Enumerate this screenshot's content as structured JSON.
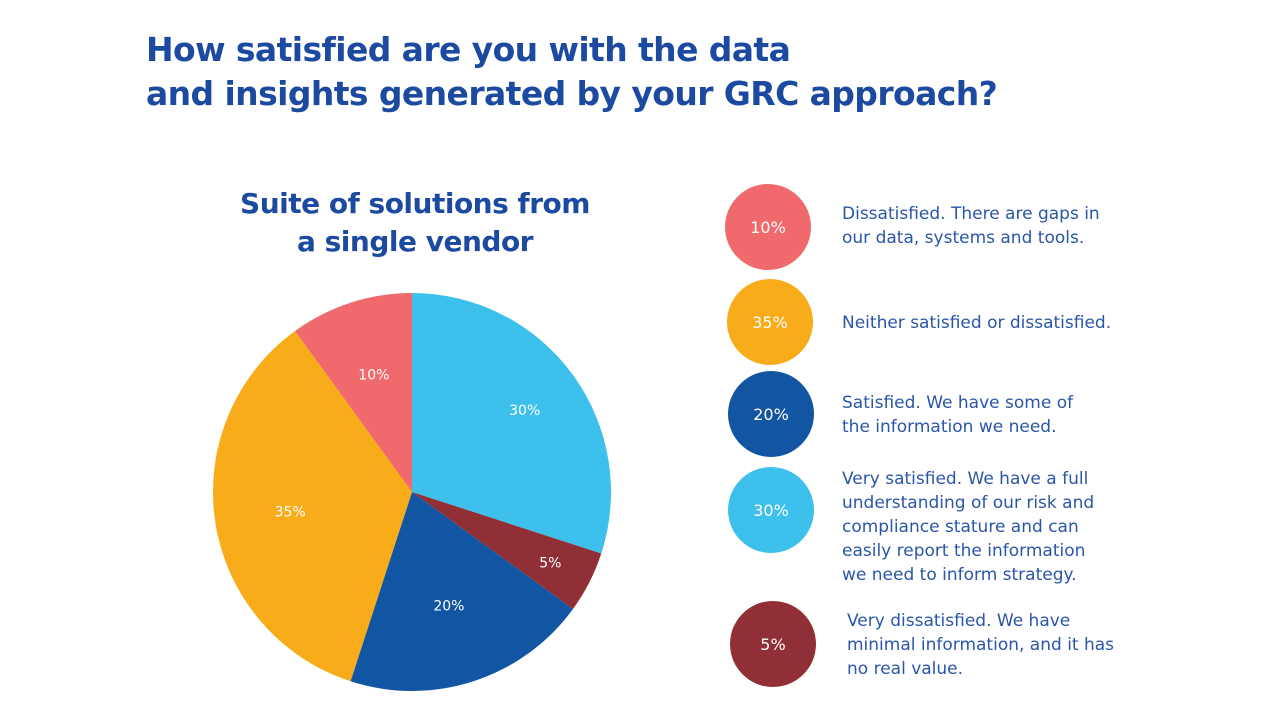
{
  "header": {
    "title_line1": "How satisfied are you with the data",
    "title_line2": "and insights generated by your GRC approach?"
  },
  "chart_title": {
    "line1": "Suite of solutions from",
    "line2": "a single vendor"
  },
  "colors": {
    "title": "#1c4aa0",
    "legend_text": "#2a56a8",
    "dissatisfied": "#f0696c",
    "neutral": "#f9ac1a",
    "satisfied": "#1255a3",
    "very_satisfied": "#3ec0ec",
    "very_dissatisfied": "#912f36"
  },
  "legend": [
    {
      "pct": "10%",
      "text": "Dissatisfied. There are gaps in\nour data, systems and tools.",
      "color": "#f0696c"
    },
    {
      "pct": "35%",
      "text": "Neither satisfied or dissatisfied.",
      "color": "#f9ac1a"
    },
    {
      "pct": "20%",
      "text": "Satisfied. We have some of\nthe information we need.",
      "color": "#1255a3"
    },
    {
      "pct": "30%",
      "text": "Very satisfied. We have a full\nunderstanding of our risk and\ncompliance stature and can\neasily report the information\nwe need to inform strategy.",
      "color": "#3ec0ec"
    },
    {
      "pct": "5%",
      "text": "Very dissatisfied. We have\nminimal information, and it has\nno real value.",
      "color": "#912f36"
    }
  ],
  "chart_data": {
    "type": "pie",
    "title": "Suite of solutions from a single vendor",
    "question": "How satisfied are you with the data and insights generated by your GRC approach?",
    "categories": [
      "Very satisfied",
      "Very dissatisfied",
      "Satisfied",
      "Neither satisfied or dissatisfied",
      "Dissatisfied"
    ],
    "values": [
      30,
      5,
      20,
      35,
      10
    ],
    "labels": [
      "30%",
      "5%",
      "20%",
      "35%",
      "10%"
    ],
    "colors": [
      "#3ec0ec",
      "#912f36",
      "#1255a3",
      "#f9ac1a",
      "#f0696c"
    ],
    "start_angle": "12 o'clock, clockwise",
    "legend_position": "right"
  }
}
